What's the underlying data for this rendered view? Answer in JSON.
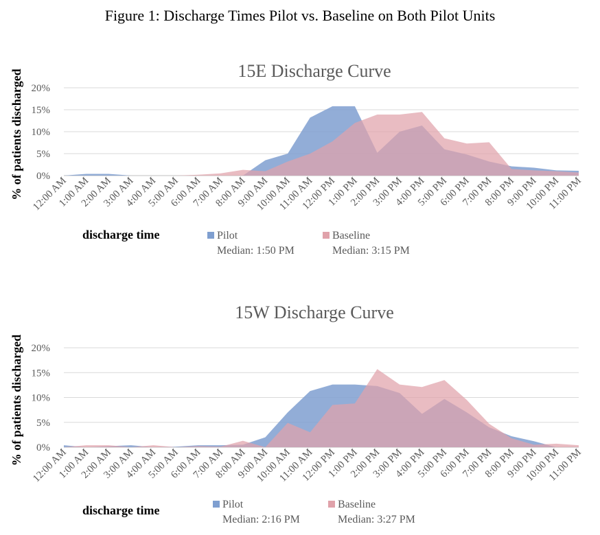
{
  "figure_title": "Figure 1: Discharge Times Pilot vs. Baseline on Both Pilot Units",
  "colors": {
    "pilot": "#7f9fd0",
    "baseline": "#e0a2aa",
    "grid": "#d9d9d9",
    "text": "#595959"
  },
  "chart_data": [
    {
      "type": "area",
      "title": "15E Discharge Curve",
      "xlabel": "discharge time",
      "ylabel": "% of patients discharged",
      "ylim": [
        0,
        20
      ],
      "yticks": [
        "0%",
        "5%",
        "10%",
        "15%",
        "20%"
      ],
      "categories": [
        "12:00 AM",
        "1:00 AM",
        "2:00 AM",
        "3:00 AM",
        "4:00 AM",
        "5:00 AM",
        "6:00 AM",
        "7:00 AM",
        "8:00 AM",
        "9:00 AM",
        "10:00 AM",
        "11:00 AM",
        "12:00 PM",
        "1:00 PM",
        "2:00 PM",
        "3:00 PM",
        "4:00 PM",
        "5:00 PM",
        "6:00 PM",
        "7:00 PM",
        "8:00 PM",
        "9:00 PM",
        "10:00 PM",
        "11:00 PM"
      ],
      "series": [
        {
          "name": "Pilot",
          "median": "Median: 1:50 PM",
          "values": [
            0,
            0.4,
            0.4,
            0,
            0,
            0,
            0,
            0,
            0,
            3.5,
            5,
            13.2,
            15.8,
            15.8,
            5.2,
            10,
            11.4,
            6,
            4.8,
            3.2,
            2.1,
            1.8,
            1.2,
            1.1
          ]
        },
        {
          "name": "Baseline",
          "median": "Median: 3:15 PM",
          "values": [
            0,
            0,
            0,
            0,
            0,
            0,
            0.2,
            0.5,
            1.3,
            1,
            3.2,
            5,
            7.8,
            12,
            13.9,
            13.9,
            14.5,
            8.5,
            7.3,
            7.6,
            1.5,
            1.2,
            1,
            0.7
          ]
        }
      ]
    },
    {
      "type": "area",
      "title": "15W Discharge Curve",
      "xlabel": "discharge time",
      "ylabel": "% of patients discharged",
      "ylim": [
        0,
        20
      ],
      "yticks": [
        "0%",
        "5%",
        "10%",
        "15%",
        "20%"
      ],
      "categories": [
        "12:00 AM",
        "1:00 AM",
        "2:00 AM",
        "3:00 AM",
        "4:00 AM",
        "5:00 AM",
        "6:00 AM",
        "7:00 AM",
        "8:00 AM",
        "9:00 AM",
        "10:00 AM",
        "11:00 AM",
        "12:00 PM",
        "1:00 PM",
        "2:00 PM",
        "3:00 PM",
        "4:00 PM",
        "5:00 PM",
        "6:00 PM",
        "7:00 PM",
        "8:00 PM",
        "9:00 PM",
        "10:00 PM",
        "11:00 PM"
      ],
      "series": [
        {
          "name": "Pilot",
          "median": "Median: 2:16 PM",
          "values": [
            0.4,
            0,
            0.2,
            0.4,
            0,
            0.1,
            0.4,
            0.4,
            0.5,
            2,
            7,
            11.3,
            12.6,
            12.6,
            12.3,
            10.9,
            6.7,
            9.7,
            7,
            4,
            2.2,
            1.2,
            0,
            0
          ]
        },
        {
          "name": "Baseline",
          "median": "Median: 3:27 PM",
          "values": [
            0,
            0.4,
            0.4,
            0,
            0.4,
            0,
            0.2,
            0.1,
            1.3,
            0,
            4.9,
            3,
            8.5,
            8.8,
            15.7,
            12.6,
            12.1,
            13.5,
            9.5,
            4.7,
            1.8,
            0.5,
            0.7,
            0.4
          ]
        }
      ]
    }
  ]
}
